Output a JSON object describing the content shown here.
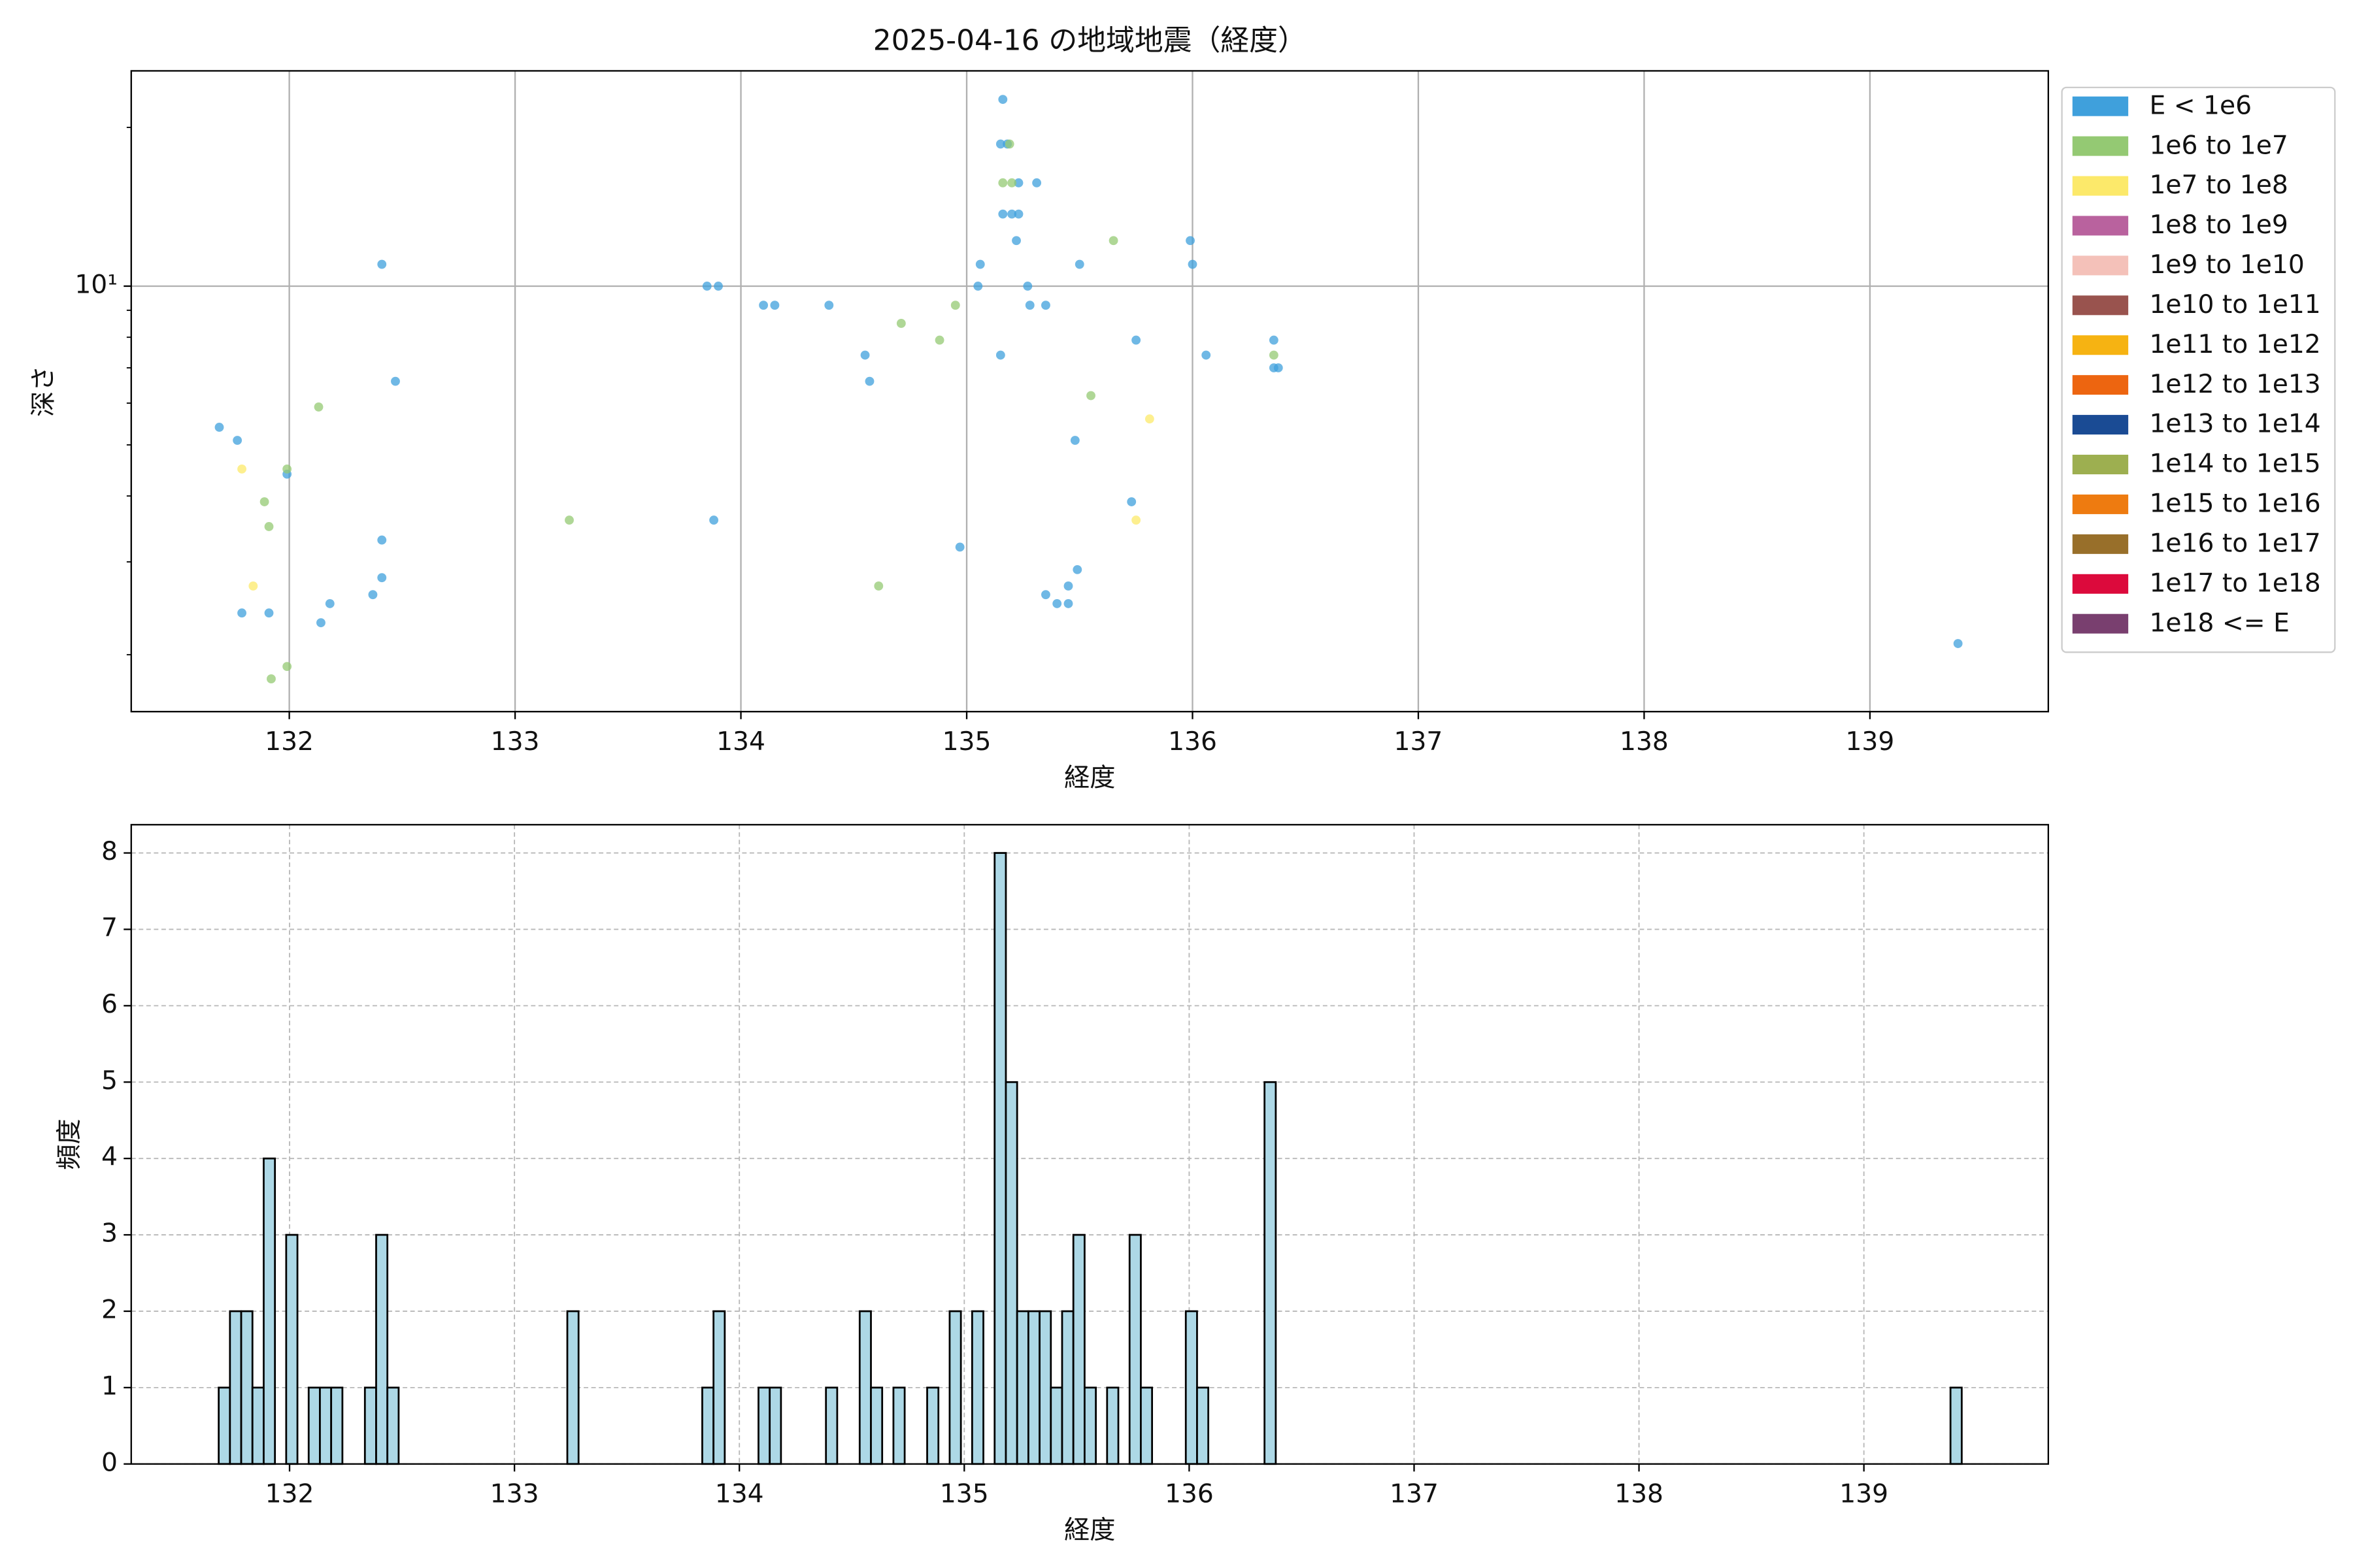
{
  "chart_data": [
    {
      "type": "scatter",
      "title": "2025-04-16 の地域地震（経度）",
      "xlabel": "経度",
      "ylabel": "深さ",
      "xlim": [
        131.3,
        139.79
      ],
      "xticks": [
        132,
        133,
        134,
        135,
        136,
        137,
        138,
        139
      ],
      "ylim": [
        1.56,
        25.6
      ],
      "ylog": true,
      "yticks": [
        {
          "value": 10,
          "label": "10¹"
        }
      ],
      "yminorticks": [
        2,
        3,
        4,
        5,
        6,
        7,
        8,
        9,
        20
      ],
      "grid": true,
      "legend": "outside right",
      "series": [
        {
          "name": "E < 1e6",
          "color": "#3fa0dc",
          "x": [
            131.69,
            131.77,
            131.99,
            131.79,
            131.91,
            132.14,
            132.18,
            132.37,
            132.41,
            132.41,
            132.41,
            132.47,
            133.85,
            133.9,
            133.88,
            134.1,
            134.15,
            134.39,
            134.55,
            134.57,
            134.97,
            135.05,
            135.06,
            135.15,
            135.16,
            135.15,
            135.18,
            135.16,
            135.2,
            135.23,
            135.22,
            135.23,
            135.31,
            135.27,
            135.28,
            135.35,
            135.35,
            135.4,
            135.45,
            135.45,
            135.49,
            135.48,
            135.5,
            135.75,
            135.73,
            135.99,
            136.0,
            136.06,
            136.36,
            136.36,
            136.38,
            139.39
          ],
          "y": [
            5.4,
            5.1,
            4.4,
            2.4,
            2.4,
            2.3,
            2.5,
            2.6,
            2.8,
            3.3,
            11.0,
            6.6,
            10.0,
            10.0,
            3.6,
            9.2,
            9.2,
            9.2,
            7.4,
            6.6,
            3.2,
            10.0,
            11.0,
            7.4,
            22.6,
            18.6,
            18.6,
            13.7,
            13.7,
            13.7,
            12.2,
            15.7,
            15.7,
            10.0,
            9.2,
            9.2,
            2.6,
            2.5,
            2.5,
            2.7,
            2.9,
            5.1,
            11.0,
            7.9,
            3.9,
            12.2,
            11.0,
            7.4,
            7.9,
            7.0,
            7.0,
            2.1
          ]
        },
        {
          "name": "1e6 to 1e7",
          "color": "#94c973",
          "x": [
            131.92,
            131.99,
            131.99,
            131.89,
            131.91,
            132.13,
            133.24,
            134.61,
            134.71,
            134.88,
            134.95,
            135.16,
            135.19,
            135.2,
            135.55,
            135.65,
            136.36
          ],
          "y": [
            1.8,
            1.9,
            4.5,
            3.9,
            3.5,
            5.9,
            3.6,
            2.7,
            8.5,
            7.9,
            9.2,
            15.7,
            18.6,
            15.7,
            6.2,
            12.2,
            7.4
          ]
        },
        {
          "name": "1e7 to 1e8",
          "color": "#fce96a",
          "x": [
            131.79,
            131.84,
            135.75,
            135.81
          ],
          "y": [
            4.5,
            2.7,
            3.6,
            5.6
          ]
        },
        {
          "name": "1e8 to 1e9",
          "color": "#b9629e",
          "x": [],
          "y": []
        },
        {
          "name": "1e9 to 1e10",
          "color": "#f4c1b9",
          "x": [],
          "y": []
        },
        {
          "name": "1e10 to 1e11",
          "color": "#99534e",
          "x": [],
          "y": []
        },
        {
          "name": "1e11 to 1e12",
          "color": "#f6b312",
          "x": [],
          "y": []
        },
        {
          "name": "1e12 to 1e13",
          "color": "#ed6510",
          "x": [],
          "y": []
        },
        {
          "name": "1e13 to 1e14",
          "color": "#1a4b94",
          "x": [],
          "y": []
        },
        {
          "name": "1e14 to 1e15",
          "color": "#9daf50",
          "x": [],
          "y": []
        },
        {
          "name": "1e15 to 1e16",
          "color": "#ee7b10",
          "x": [],
          "y": []
        },
        {
          "name": "1e16 to 1e17",
          "color": "#986f2a",
          "x": [],
          "y": []
        },
        {
          "name": "1e17 to 1e18",
          "color": "#dc0a3c",
          "x": [],
          "y": []
        },
        {
          "name": "1e18 <= E",
          "color": "#793f6f",
          "x": [],
          "y": []
        }
      ]
    },
    {
      "type": "histogram",
      "xlabel": "経度",
      "ylabel": "頻度",
      "xlim": [
        131.296,
        139.82
      ],
      "xticks": [
        132,
        133,
        134,
        135,
        136,
        137,
        138,
        139
      ],
      "ylim": [
        0,
        8.37
      ],
      "yticks": [
        0,
        1,
        2,
        3,
        4,
        5,
        6,
        7,
        8
      ],
      "grid": "dashed",
      "color": "#add8e6",
      "edgecolor": "#000000",
      "bins": [
        131.685,
        131.735,
        131.785,
        131.835,
        131.885,
        131.935,
        131.985,
        132.035,
        132.085,
        132.135,
        132.185,
        132.235,
        132.285,
        132.335,
        132.385,
        132.435,
        132.485,
        132.535,
        132.585,
        132.635,
        132.685,
        132.735,
        132.785,
        132.835,
        132.885,
        132.935,
        132.985,
        133.035,
        133.085,
        133.135,
        133.185,
        133.235,
        133.285,
        133.335,
        133.385,
        133.435,
        133.485,
        133.535,
        133.585,
        133.635,
        133.685,
        133.735,
        133.785,
        133.835,
        133.885,
        133.935,
        133.985,
        134.035,
        134.085,
        134.135,
        134.185,
        134.235,
        134.285,
        134.335,
        134.385,
        134.435,
        134.485,
        134.535,
        134.585,
        134.635,
        134.685,
        134.735,
        134.785,
        134.835,
        134.885,
        134.935,
        134.985,
        135.035,
        135.085,
        135.135,
        135.185,
        135.235,
        135.285,
        135.335,
        135.385,
        135.435,
        135.485,
        135.535,
        135.585,
        135.635,
        135.685,
        135.735,
        135.785,
        135.835,
        135.885,
        135.935,
        135.985,
        136.035,
        136.085,
        136.135,
        136.185,
        136.235,
        136.285,
        136.335,
        136.385,
        136.435,
        136.485,
        136.535,
        136.585,
        136.635,
        136.685,
        136.735,
        136.785,
        136.835,
        136.885,
        136.935,
        136.985,
        137.035,
        137.085,
        137.135,
        137.185,
        137.235,
        137.285,
        137.335,
        137.385,
        137.435,
        137.485,
        137.535,
        137.585,
        137.635,
        137.685,
        137.735,
        137.785,
        137.835,
        137.885,
        137.935,
        137.985,
        138.035,
        138.085,
        138.135,
        138.185,
        138.235,
        138.285,
        138.335,
        138.385,
        138.435,
        138.485,
        138.535,
        138.585,
        138.635,
        138.685,
        138.735,
        138.785,
        138.835,
        138.885,
        138.935,
        138.985,
        139.035,
        139.085,
        139.135,
        139.185,
        139.235,
        139.285,
        139.335,
        139.385,
        139.435
      ],
      "counts": [
        1,
        2,
        2,
        1,
        4,
        0,
        3,
        0,
        1,
        1,
        1,
        0,
        0,
        1,
        3,
        1,
        0,
        0,
        0,
        0,
        0,
        0,
        0,
        0,
        0,
        0,
        0,
        0,
        0,
        0,
        0,
        2,
        0,
        0,
        0,
        0,
        0,
        0,
        0,
        0,
        0,
        0,
        0,
        1,
        2,
        0,
        0,
        0,
        1,
        1,
        0,
        0,
        0,
        0,
        1,
        0,
        0,
        2,
        1,
        0,
        1,
        0,
        0,
        1,
        0,
        2,
        0,
        2,
        0,
        8,
        5,
        2,
        2,
        2,
        1,
        2,
        3,
        1,
        0,
        1,
        0,
        3,
        1,
        0,
        0,
        0,
        2,
        1,
        0,
        0,
        0,
        0,
        0,
        5,
        0,
        0,
        0,
        0,
        0,
        0,
        0,
        0,
        0,
        0,
        0,
        0,
        0,
        0,
        0,
        0,
        0,
        0,
        0,
        0,
        0,
        0,
        0,
        0,
        0,
        0,
        0,
        0,
        0,
        0,
        0,
        0,
        0,
        0,
        0,
        0,
        0,
        0,
        0,
        0,
        0,
        0,
        0,
        0,
        0,
        0,
        0,
        0,
        0,
        0,
        0,
        0,
        0,
        0,
        0,
        0,
        0,
        0,
        0,
        0,
        1
      ]
    }
  ]
}
